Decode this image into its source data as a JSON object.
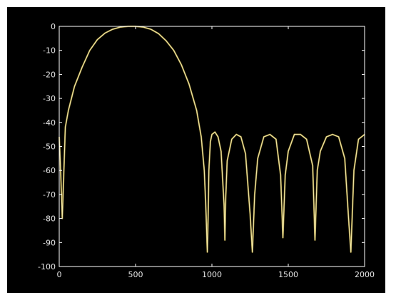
{
  "colors": {
    "background": "#000000",
    "axes": "#ffffff",
    "ticks": "#e6e6e6",
    "trace_primary": "#f2e7a6",
    "trace_secondary": "#c9b24a"
  },
  "chart_data": {
    "type": "line",
    "title": "",
    "xlabel": "",
    "ylabel": "",
    "xlim": [
      0,
      2000
    ],
    "ylim": [
      -100,
      0
    ],
    "xticks": [
      0,
      500,
      1000,
      1500,
      2000
    ],
    "yticks": [
      0,
      -10,
      -20,
      -30,
      -40,
      -50,
      -60,
      -70,
      -80,
      -90,
      -100
    ],
    "xtick_labels": [
      "0",
      "500",
      "1000",
      "1500",
      "2000"
    ],
    "ytick_labels": [
      "0",
      "-10",
      "-20",
      "-30",
      "-40",
      "-50",
      "-60",
      "-70",
      "-80",
      "-90",
      "-100"
    ],
    "grid": false,
    "series": [
      {
        "x": [
          0,
          8,
          20,
          40,
          60,
          100,
          150,
          200,
          250,
          300,
          350,
          400,
          450,
          500,
          550,
          600,
          650,
          700,
          750,
          800,
          850,
          900,
          930,
          950,
          960,
          970,
          975,
          980,
          990,
          1000,
          1020,
          1040,
          1060,
          1080,
          1085,
          1090,
          1100,
          1130,
          1160,
          1190,
          1220,
          1250,
          1265,
          1280,
          1300,
          1340,
          1380,
          1420,
          1450,
          1465,
          1480,
          1500,
          1540,
          1580,
          1620,
          1660,
          1675,
          1690,
          1710,
          1750,
          1790,
          1830,
          1870,
          1895,
          1910,
          1930,
          1960,
          2000
        ],
        "y": [
          -46,
          -58,
          -80,
          -42,
          -35,
          -25,
          -17,
          -10,
          -5.5,
          -2.8,
          -1.2,
          -0.3,
          0,
          0,
          -0.3,
          -1.2,
          -3,
          -6,
          -10,
          -16,
          -24,
          -35,
          -46,
          -60,
          -75,
          -94,
          -80,
          -60,
          -48,
          -45,
          -44,
          -46,
          -52,
          -75,
          -89,
          -72,
          -56,
          -47,
          -45,
          -46,
          -53,
          -78,
          -94,
          -70,
          -55,
          -46,
          -45,
          -47,
          -62,
          -88,
          -62,
          -52,
          -45,
          -45,
          -47,
          -58,
          -89,
          -60,
          -52,
          -46,
          -45,
          -46,
          -55,
          -80,
          -94,
          -60,
          -47,
          -45
        ]
      }
    ]
  }
}
